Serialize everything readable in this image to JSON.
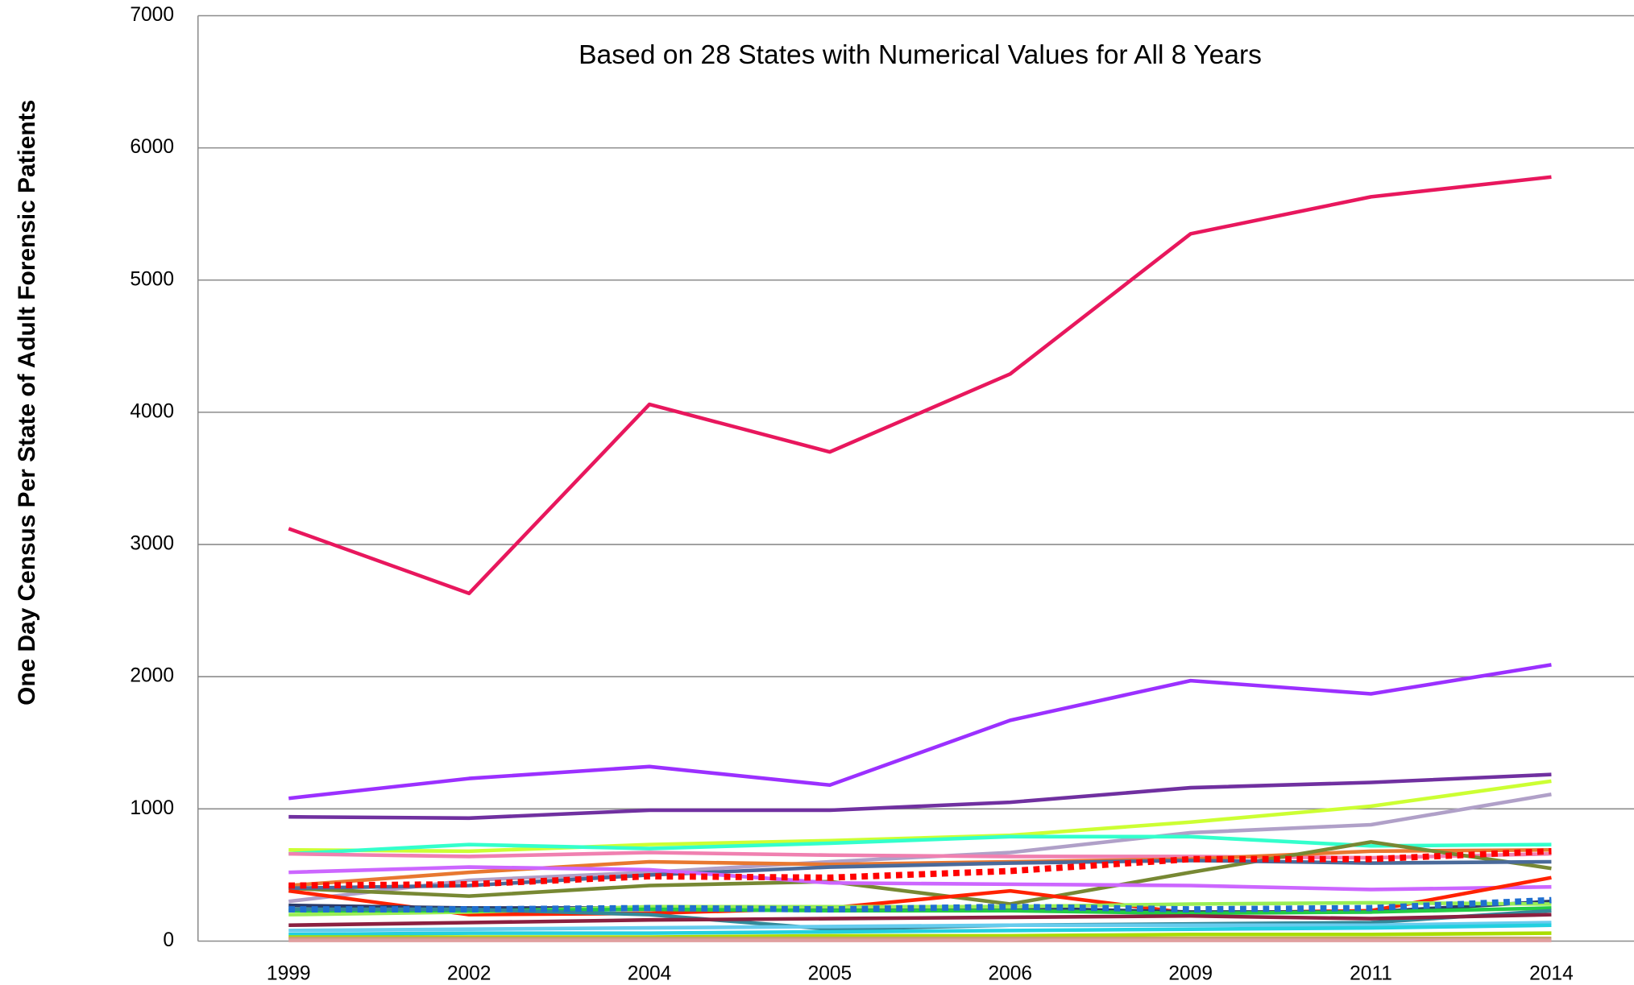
{
  "chart_data": {
    "type": "line",
    "subtitle": "Based on 28 States with Numerical Values  for All 8 Years",
    "y_label": "One Day  Census  Per State of Adult Forensic Patients",
    "categories": [
      "1999",
      "2002",
      "2004",
      "2005",
      "2006",
      "2009",
      "2011",
      "2014"
    ],
    "ylim": [
      0,
      7000
    ],
    "yticks": [
      0,
      1000,
      2000,
      3000,
      4000,
      5000,
      6000,
      7000
    ],
    "grid": true,
    "series": [
      {
        "color": "#e8175d",
        "values": [
          3120,
          2630,
          4060,
          3700,
          4290,
          5350,
          5630,
          5780
        ]
      },
      {
        "color": "#9b30ff",
        "values": [
          1080,
          1230,
          1320,
          1180,
          1670,
          1970,
          1870,
          2090
        ]
      },
      {
        "color": "#7030a0",
        "values": [
          940,
          930,
          990,
          990,
          1050,
          1160,
          1200,
          1260
        ]
      },
      {
        "color": "#ccff33",
        "values": [
          690,
          680,
          730,
          760,
          800,
          900,
          1020,
          1210
        ]
      },
      {
        "color": "#b0a0c8",
        "values": [
          300,
          460,
          520,
          600,
          670,
          820,
          880,
          1110
        ]
      },
      {
        "color": "#33ffcc",
        "values": [
          660,
          730,
          700,
          740,
          790,
          790,
          720,
          730
        ]
      },
      {
        "color": "#f080b0",
        "values": [
          660,
          640,
          670,
          650,
          640,
          640,
          630,
          660
        ]
      },
      {
        "color": "#e87830",
        "values": [
          420,
          520,
          600,
          580,
          600,
          620,
          680,
          690
        ]
      },
      {
        "color": "#778833",
        "values": [
          400,
          340,
          420,
          450,
          280,
          520,
          750,
          550
        ]
      },
      {
        "color": "#4a6a9a",
        "values": [
          400,
          420,
          500,
          560,
          590,
          610,
          590,
          600
        ]
      },
      {
        "color": "#cc66ff",
        "values": [
          520,
          560,
          540,
          440,
          430,
          420,
          390,
          410
        ]
      },
      {
        "color": "#ff2200",
        "values": [
          380,
          200,
          210,
          250,
          380,
          210,
          230,
          480
        ]
      },
      {
        "color": "#2a3a6a",
        "values": [
          270,
          250,
          250,
          250,
          250,
          220,
          220,
          300
        ]
      },
      {
        "color": "#99ee55",
        "values": [
          200,
          220,
          260,
          260,
          260,
          280,
          290,
          280
        ]
      },
      {
        "color": "#22cc44",
        "values": [
          230,
          230,
          240,
          230,
          230,
          210,
          220,
          250
        ]
      },
      {
        "color": "#338899",
        "values": [
          240,
          240,
          200,
          90,
          120,
          130,
          140,
          230
        ]
      },
      {
        "color": "#8b2040",
        "values": [
          120,
          140,
          160,
          170,
          180,
          190,
          170,
          200
        ]
      },
      {
        "color": "#66ccee",
        "values": [
          80,
          90,
          100,
          110,
          120,
          120,
          120,
          140
        ]
      },
      {
        "color": "#22d0e0",
        "values": [
          50,
          60,
          60,
          70,
          80,
          90,
          100,
          120
        ]
      },
      {
        "color": "#aadd00",
        "values": [
          30,
          30,
          30,
          40,
          40,
          50,
          50,
          60
        ]
      },
      {
        "color": "#c8a070",
        "values": [
          20,
          20,
          20,
          20,
          20,
          20,
          20,
          20
        ]
      },
      {
        "color": "#e0a0a0",
        "values": [
          5,
          5,
          5,
          5,
          5,
          5,
          5,
          5
        ]
      },
      {
        "color": "#ff0000",
        "style": "dotted",
        "values": [
          420,
          430,
          490,
          480,
          530,
          620,
          620,
          680
        ]
      },
      {
        "color": "#1f6fd0",
        "style": "dotted",
        "values": [
          240,
          240,
          250,
          240,
          260,
          240,
          250,
          310
        ]
      }
    ]
  }
}
